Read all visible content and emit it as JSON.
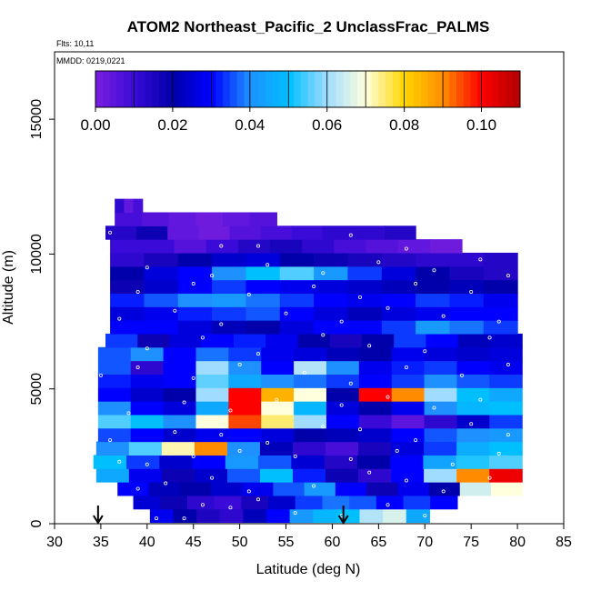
{
  "chart_data": {
    "type": "heatmap",
    "title": "ATOM2 Northeast_Pacific_2 UnclassFrac_PALMS",
    "flights_text": "Flts: 10,11",
    "dates_text": "MMDD: 0219,0221",
    "xlabel": "Latitude (deg N)",
    "ylabel": "Altitude (m)",
    "xlim": [
      30,
      85
    ],
    "ylim": [
      0,
      17500
    ],
    "xticks": [
      30,
      35,
      40,
      45,
      50,
      55,
      60,
      65,
      70,
      75,
      80,
      85
    ],
    "yticks": [
      0,
      5000,
      10000,
      15000
    ],
    "colorbar": {
      "range": [
        0.0,
        0.11
      ],
      "ticks": [
        0.0,
        0.02,
        0.04,
        0.06,
        0.08,
        0.1
      ],
      "tick_labels": [
        "0.00",
        "0.02",
        "0.04",
        "0.06",
        "0.08",
        "0.10"
      ],
      "colors": [
        "#7b1fe0",
        "#3a0ad8",
        "#0000aa",
        "#0000ff",
        "#1e90ff",
        "#00bfff",
        "#a0dcff",
        "#ffffdd",
        "#ffd700",
        "#ff8c00",
        "#ff0000",
        "#b00000"
      ]
    },
    "arrows_at_latitude": [
      34.7,
      61.2
    ],
    "bands": [
      {
        "alt": 300,
        "x0": 40.3,
        "x1": 70.5,
        "values": [
          0.028,
          0.02,
          0.015,
          0.012,
          0.022,
          0.03,
          0.042,
          0.048,
          0.05,
          0.062,
          0.066,
          0.045
        ]
      },
      {
        "alt": 800,
        "x0": 38.5,
        "x1": 73.5,
        "values": [
          0.025,
          0.018,
          0.012,
          0.01,
          0.016,
          0.024,
          0.034,
          0.038,
          0.036,
          0.03,
          0.034,
          0.03
        ]
      },
      {
        "alt": 1300,
        "x0": 36.8,
        "x1": 80.5,
        "values": [
          0.03,
          0.022,
          0.02,
          0.024,
          0.028,
          0.036,
          0.042,
          0.03,
          0.018,
          0.028,
          0.02,
          0.065,
          0.07
        ]
      },
      {
        "alt": 1800,
        "x0": 34.5,
        "x1": 80.5,
        "values": [
          0.045,
          0.028,
          0.018,
          0.024,
          0.036,
          0.05,
          0.032,
          0.018,
          0.012,
          0.03,
          0.06,
          0.09,
          0.102
        ]
      },
      {
        "alt": 2300,
        "x0": 34.2,
        "x1": 80.5,
        "values": [
          0.05,
          0.034,
          0.024,
          0.03,
          0.042,
          0.036,
          0.025,
          0.014,
          0.02,
          0.03,
          0.044,
          0.052,
          0.055
        ]
      },
      {
        "alt": 2800,
        "x0": 34.5,
        "x1": 80.5,
        "values": [
          0.04,
          0.055,
          0.072,
          0.09,
          0.04,
          0.022,
          0.012,
          0.008,
          0.016,
          0.026,
          0.034,
          0.046,
          0.05
        ]
      },
      {
        "alt": 3300,
        "x0": 34.7,
        "x1": 80.5,
        "values": [
          0.035,
          0.03,
          0.024,
          0.028,
          0.03,
          0.026,
          0.02,
          0.022,
          0.024,
          0.03,
          0.036,
          0.04,
          0.042
        ]
      },
      {
        "alt": 3800,
        "x0": 34.7,
        "x1": 80.5,
        "values": [
          0.055,
          0.05,
          0.04,
          0.07,
          0.095,
          0.075,
          0.06,
          0.03,
          0.01,
          0.005,
          0.012,
          0.024,
          0.034
        ]
      },
      {
        "alt": 4300,
        "x0": 34.7,
        "x1": 80.5,
        "values": [
          0.04,
          0.03,
          0.026,
          0.045,
          0.1,
          0.07,
          0.048,
          0.026,
          0.02,
          0.028,
          0.04,
          0.048,
          0.05
        ]
      },
      {
        "alt": 4800,
        "x0": 34.7,
        "x1": 80.5,
        "values": [
          0.03,
          0.024,
          0.02,
          0.06,
          0.1,
          0.085,
          0.07,
          0.02,
          0.1,
          0.09,
          0.06,
          0.05,
          0.045
        ]
      },
      {
        "alt": 5300,
        "x0": 34.7,
        "x1": 80.5,
        "values": [
          0.032,
          0.028,
          0.03,
          0.056,
          0.045,
          0.04,
          0.038,
          0.034,
          0.03,
          0.034,
          0.04,
          0.036,
          0.034
        ]
      },
      {
        "alt": 5800,
        "x0": 34.7,
        "x1": 80.5,
        "values": [
          0.036,
          0.012,
          0.03,
          0.06,
          0.04,
          0.03,
          0.062,
          0.04,
          0.028,
          0.032,
          0.034,
          0.03,
          0.028
        ]
      },
      {
        "alt": 6300,
        "x0": 34.7,
        "x1": 80.5,
        "values": [
          0.036,
          0.04,
          0.03,
          0.038,
          0.034,
          0.028,
          0.026,
          0.022,
          0.02,
          0.028,
          0.026,
          0.024,
          0.026
        ]
      },
      {
        "alt": 6800,
        "x0": 35.5,
        "x1": 80.5,
        "values": [
          0.034,
          0.018,
          0.026,
          0.03,
          0.032,
          0.028,
          0.02,
          0.016,
          0.02,
          0.034,
          0.03,
          0.022,
          0.024
        ]
      },
      {
        "alt": 7300,
        "x0": 36.0,
        "x1": 80.0,
        "values": [
          0.03,
          0.03,
          0.026,
          0.022,
          0.02,
          0.026,
          0.03,
          0.03,
          0.034,
          0.042,
          0.038,
          0.034
        ]
      },
      {
        "alt": 7800,
        "x0": 36.0,
        "x1": 80.0,
        "values": [
          0.026,
          0.028,
          0.032,
          0.034,
          0.036,
          0.03,
          0.026,
          0.022,
          0.026,
          0.028,
          0.03,
          0.03
        ]
      },
      {
        "alt": 8300,
        "x0": 36.0,
        "x1": 80.0,
        "values": [
          0.032,
          0.036,
          0.04,
          0.042,
          0.038,
          0.034,
          0.03,
          0.028,
          0.03,
          0.034,
          0.032,
          0.028
        ]
      },
      {
        "alt": 8800,
        "x0": 36.0,
        "x1": 80.0,
        "values": [
          0.018,
          0.024,
          0.03,
          0.034,
          0.03,
          0.028,
          0.026,
          0.024,
          0.022,
          0.02,
          0.022,
          0.02
        ]
      },
      {
        "alt": 9300,
        "x0": 36.0,
        "x1": 80.0,
        "values": [
          0.02,
          0.026,
          0.03,
          0.04,
          0.05,
          0.055,
          0.042,
          0.034,
          0.026,
          0.02,
          0.016,
          0.014
        ]
      },
      {
        "alt": 9800,
        "x0": 36.0,
        "x1": 80.0,
        "values": [
          0.012,
          0.016,
          0.02,
          0.024,
          0.026,
          0.02,
          0.018,
          0.016,
          0.014,
          0.012,
          0.012,
          0.014
        ]
      },
      {
        "alt": 10300,
        "x0": 36.0,
        "x1": 74.0,
        "values": [
          0.01,
          0.01,
          0.006,
          0.01,
          0.014,
          0.016,
          0.012,
          0.008,
          0.006,
          0.004,
          0.002
        ]
      },
      {
        "alt": 10800,
        "x0": 35.5,
        "x1": 69.0,
        "values": [
          0.014,
          0.018,
          0.004,
          0.002,
          0.006,
          0.008,
          0.01,
          0.012,
          0.012,
          0.014
        ]
      },
      {
        "alt": 11300,
        "x0": 36.5,
        "x1": 54.0,
        "values": [
          0.008,
          0.006,
          0.004,
          0.002,
          0.004,
          0.006
        ]
      },
      {
        "alt": 11800,
        "x0": 36.5,
        "x1": 39.5,
        "values": [
          0.012,
          0.004,
          0.008
        ]
      }
    ],
    "sample_points": [
      [
        41,
        200
      ],
      [
        44,
        200
      ],
      [
        46,
        700
      ],
      [
        49,
        600
      ],
      [
        52,
        900
      ],
      [
        56,
        400
      ],
      [
        61,
        300
      ],
      [
        66,
        700
      ],
      [
        70,
        300
      ],
      [
        39,
        1300
      ],
      [
        42,
        1500
      ],
      [
        47,
        1700
      ],
      [
        51,
        1200
      ],
      [
        58,
        1400
      ],
      [
        64,
        1900
      ],
      [
        68,
        1600
      ],
      [
        72,
        1200
      ],
      [
        77,
        1700
      ],
      [
        37,
        2300
      ],
      [
        40,
        2200
      ],
      [
        45,
        2500
      ],
      [
        50,
        2700
      ],
      [
        56,
        2500
      ],
      [
        62,
        2400
      ],
      [
        67,
        2700
      ],
      [
        73,
        2200
      ],
      [
        78,
        2600
      ],
      [
        36,
        3100
      ],
      [
        43,
        3400
      ],
      [
        48,
        3300
      ],
      [
        53,
        3000
      ],
      [
        59,
        3600
      ],
      [
        63,
        3500
      ],
      [
        69,
        3100
      ],
      [
        75,
        3700
      ],
      [
        79,
        3300
      ],
      [
        38,
        4100
      ],
      [
        44,
        4500
      ],
      [
        49,
        4200
      ],
      [
        54,
        4600
      ],
      [
        61,
        4400
      ],
      [
        66,
        4700
      ],
      [
        71,
        4300
      ],
      [
        76,
        4600
      ],
      [
        35,
        5500
      ],
      [
        39,
        5800
      ],
      [
        45,
        5400
      ],
      [
        50,
        5900
      ],
      [
        57,
        5600
      ],
      [
        62,
        5200
      ],
      [
        68,
        5800
      ],
      [
        74,
        5500
      ],
      [
        79,
        5900
      ],
      [
        40,
        6500
      ],
      [
        46,
        6900
      ],
      [
        52,
        6300
      ],
      [
        59,
        7000
      ],
      [
        64,
        6600
      ],
      [
        70,
        6400
      ],
      [
        77,
        6900
      ],
      [
        37,
        7600
      ],
      [
        43,
        7900
      ],
      [
        48,
        7400
      ],
      [
        55,
        7800
      ],
      [
        61,
        7500
      ],
      [
        66,
        8000
      ],
      [
        72,
        7700
      ],
      [
        78,
        7500
      ],
      [
        39,
        8600
      ],
      [
        45,
        8900
      ],
      [
        51,
        8500
      ],
      [
        58,
        8800
      ],
      [
        63,
        8400
      ],
      [
        69,
        8900
      ],
      [
        75,
        8600
      ],
      [
        40,
        9500
      ],
      [
        47,
        9200
      ],
      [
        53,
        9600
      ],
      [
        59,
        9300
      ],
      [
        65,
        9700
      ],
      [
        71,
        9400
      ],
      [
        76,
        9800
      ],
      [
        79,
        9200
      ],
      [
        36,
        10800
      ],
      [
        48,
        10300
      ],
      [
        52,
        10300
      ],
      [
        62,
        10700
      ],
      [
        68,
        10200
      ]
    ]
  }
}
